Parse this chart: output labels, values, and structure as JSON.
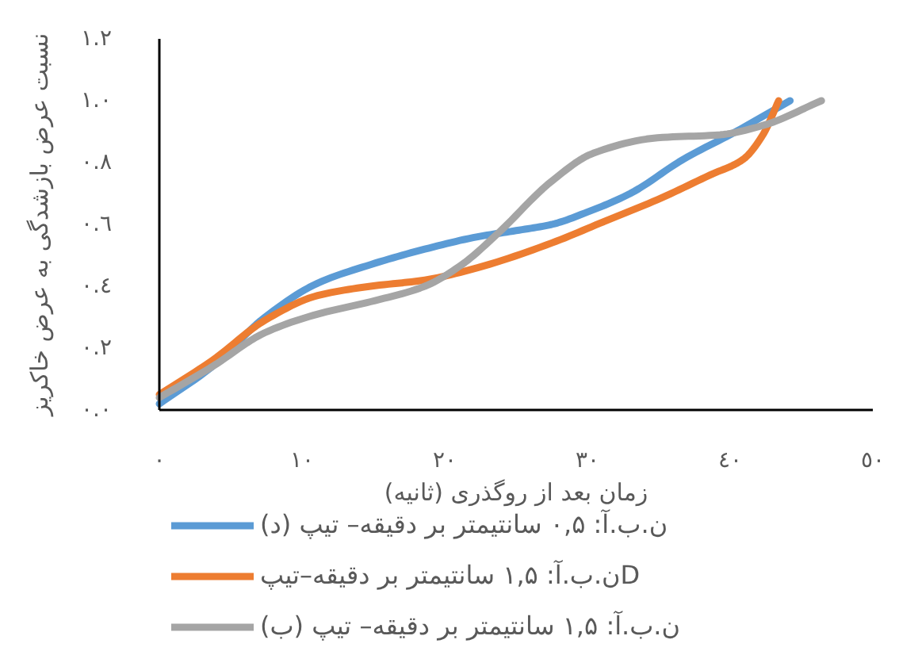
{
  "chart_data": {
    "type": "line",
    "xlabel": "زمان بعد از روگذری (ثانیه)",
    "ylabel": "نسبت عرض بازشدگی به عرض خاکریز",
    "xlim": [
      0,
      50
    ],
    "ylim": [
      0,
      1.2
    ],
    "xticks": [
      {
        "value": 0,
        "label": "٠"
      },
      {
        "value": 10,
        "label": "١٠"
      },
      {
        "value": 20,
        "label": "٢٠"
      },
      {
        "value": 30,
        "label": "٣٠"
      },
      {
        "value": 40,
        "label": "٤٠"
      },
      {
        "value": 50,
        "label": "٥٠"
      }
    ],
    "yticks": [
      {
        "value": 0,
        "label": "٠.٠"
      },
      {
        "value": 0.2,
        "label": "٠.٢"
      },
      {
        "value": 0.4,
        "label": "٠.٤"
      },
      {
        "value": 0.6,
        "label": "٠.٦"
      },
      {
        "value": 0.8,
        "label": "٠.٨"
      },
      {
        "value": 1,
        "label": "١.٠"
      },
      {
        "value": 1.2,
        "label": "١.٢"
      }
    ],
    "grid": false,
    "legend": "bottom",
    "line_style": "solid",
    "series": [
      {
        "name": "ن.ب.آ: ۰,۵ سانتیمتر بر دقیقه– تیپ (د)",
        "color": "#5b9bd5",
        "x": [
          0,
          3.7,
          7.4,
          11.1,
          14.8,
          18.6,
          22.3,
          25,
          27.5,
          30,
          33,
          36.7,
          40.4,
          44.2
        ],
        "values": [
          0.02,
          0.14,
          0.3,
          0.41,
          0.47,
          0.52,
          0.56,
          0.58,
          0.6,
          0.64,
          0.7,
          0.81,
          0.9,
          1.0
        ]
      },
      {
        "name": "ن.ب.آ: ۱,۵ سانتیمتر بر دقیقه–تیپD",
        "color": "#ed7d31",
        "x": [
          0,
          3.7,
          7.4,
          11.1,
          14.8,
          18.6,
          22.3,
          27.5,
          31.2,
          34.9,
          38.6,
          40.9,
          42.3,
          43.4
        ],
        "values": [
          0.05,
          0.16,
          0.29,
          0.37,
          0.4,
          0.42,
          0.46,
          0.54,
          0.61,
          0.68,
          0.76,
          0.81,
          0.89,
          1.0
        ]
      },
      {
        "name": "ن.ب.آ: ۱,۵ سانتیمتر بر دقیقه– تیپ (ب)",
        "color": "#a5a5a5",
        "x": [
          0,
          3.7,
          7.4,
          11.1,
          14.8,
          18.6,
          21.2,
          23.7,
          27.5,
          30.4,
          34.9,
          39.3,
          42.3,
          46.4
        ],
        "values": [
          0.04,
          0.14,
          0.25,
          0.31,
          0.35,
          0.4,
          0.47,
          0.57,
          0.74,
          0.83,
          0.88,
          0.89,
          0.92,
          1.0
        ]
      }
    ]
  }
}
